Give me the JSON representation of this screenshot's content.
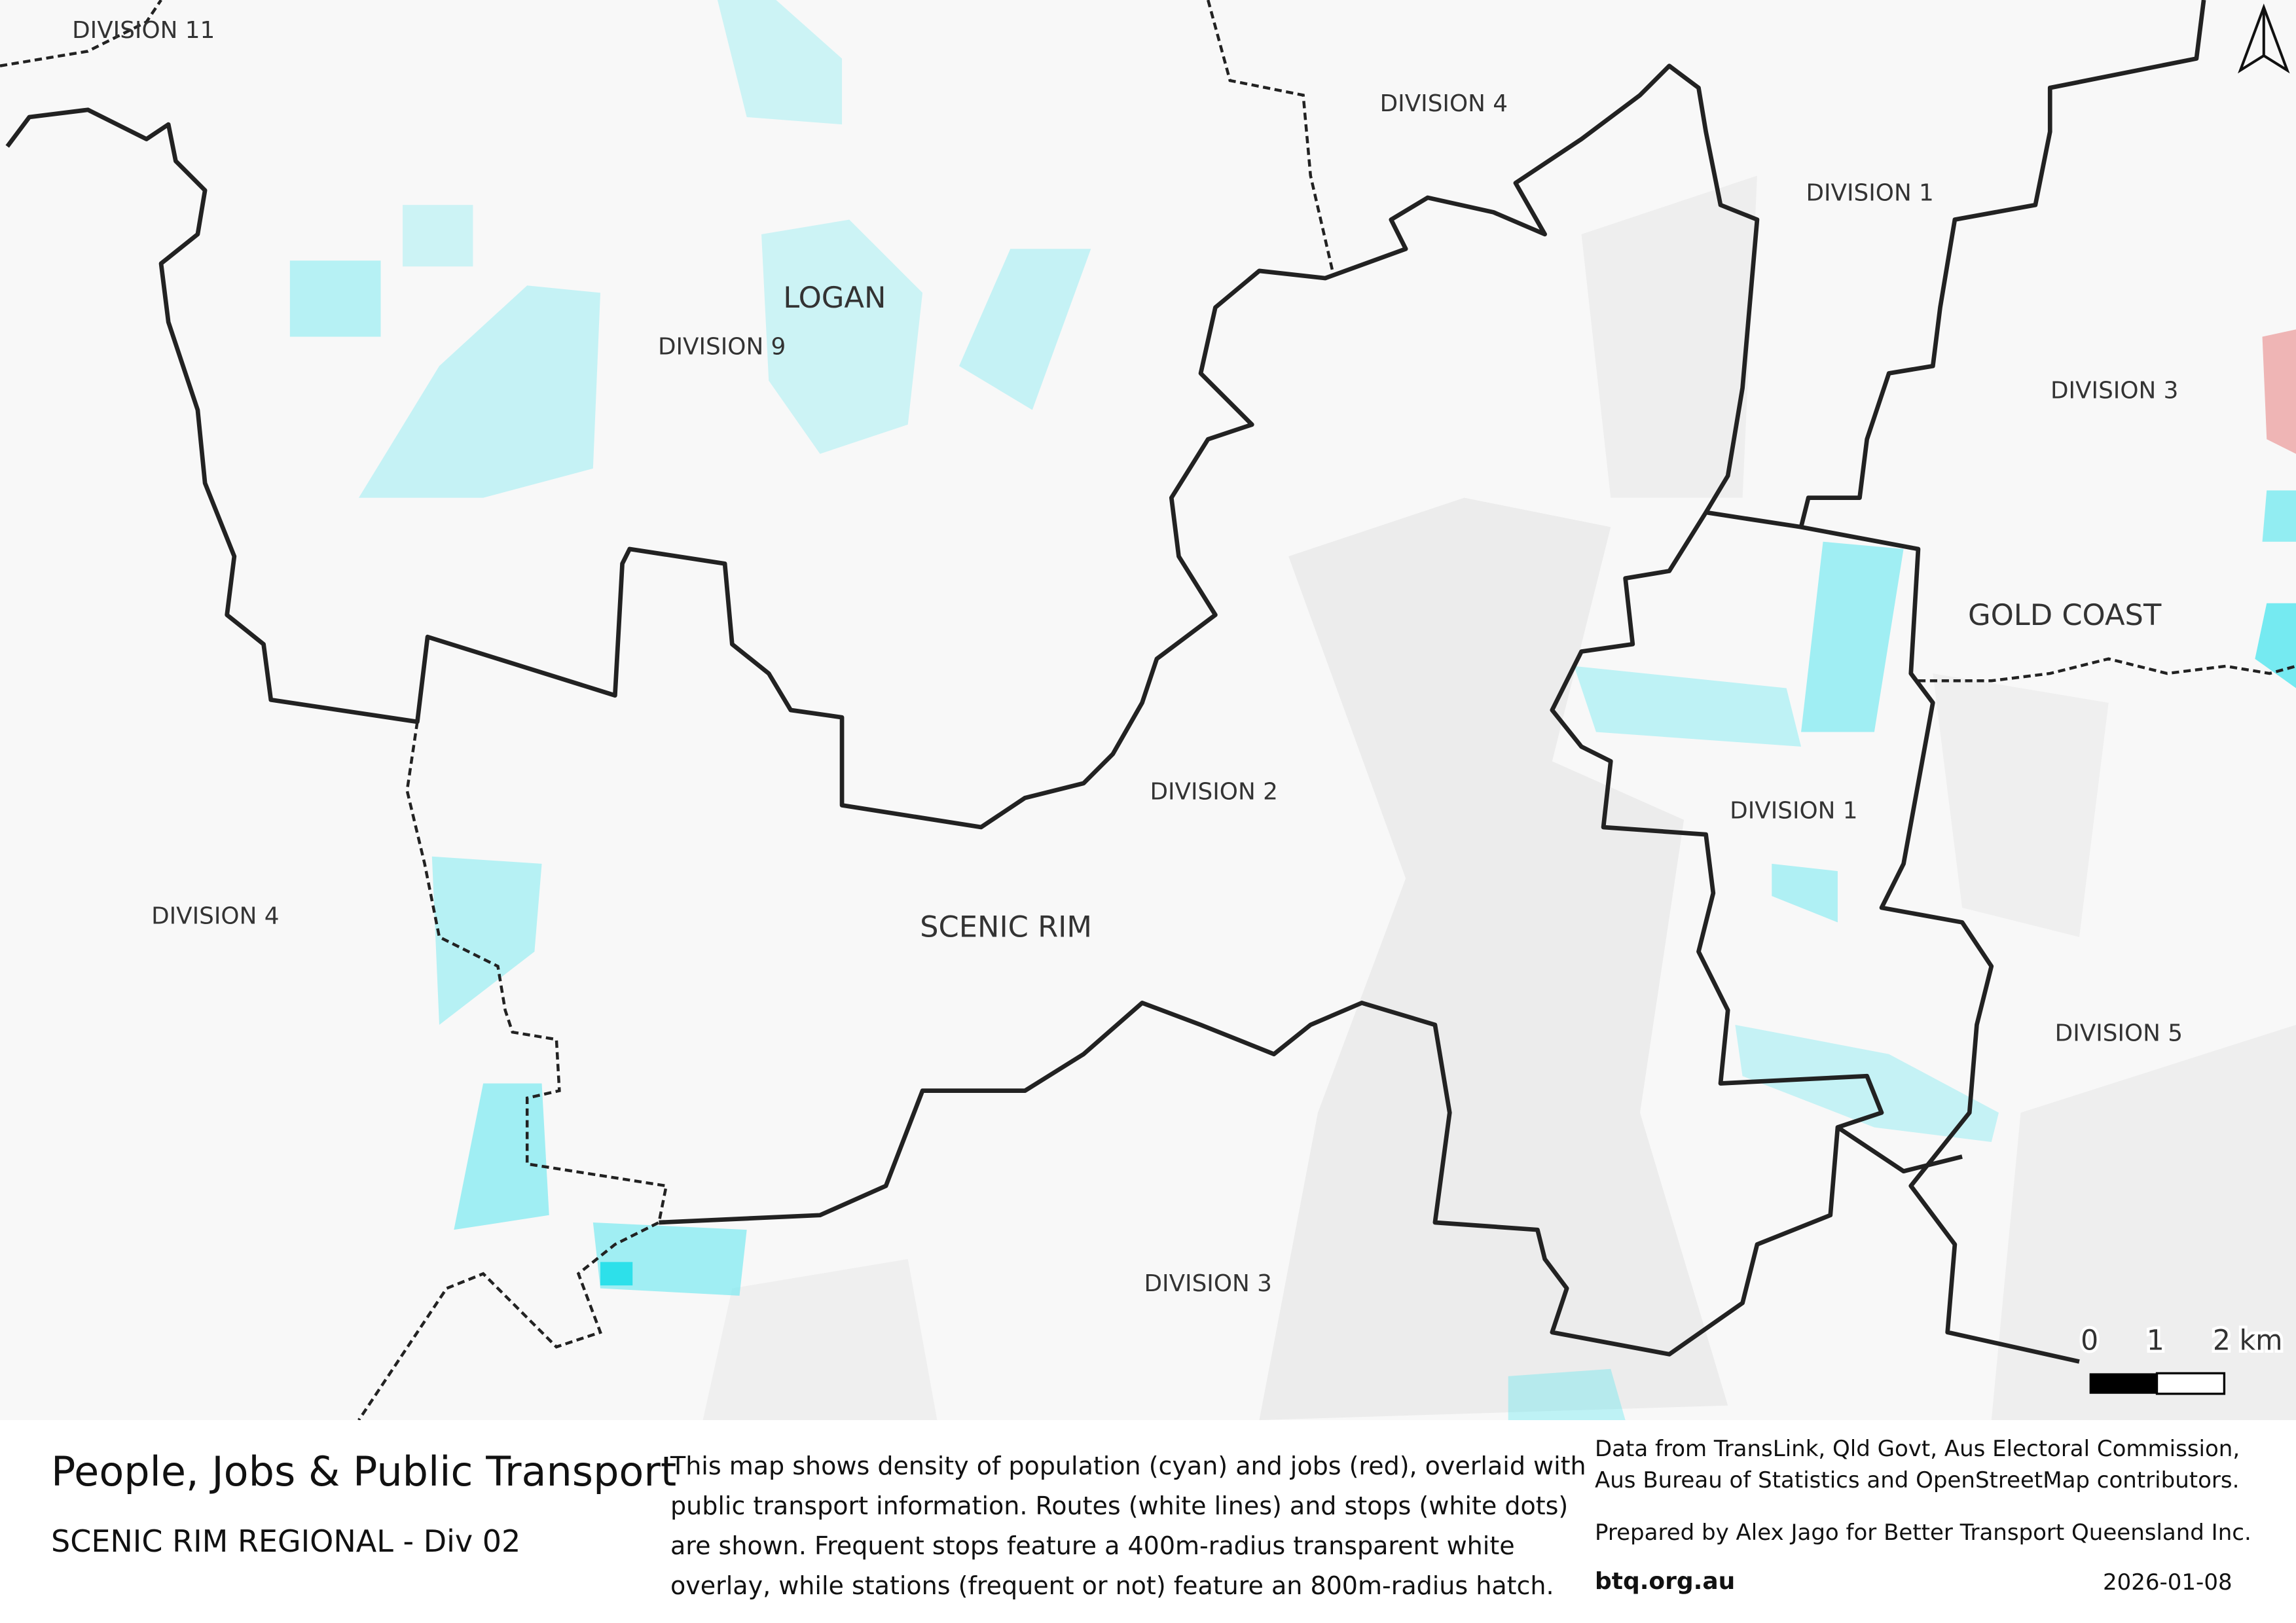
{
  "map": {
    "labels": {
      "logan": "LOGAN",
      "scenic_rim": "SCENIC RIM",
      "gold_coast": "GOLD COAST",
      "div11": "DIVISION 11",
      "div4_top": "DIVISION 4",
      "div9": "DIVISION 9",
      "div1_top": "DIVISION 1",
      "div3_right": "DIVISION 3",
      "div2": "DIVISION 2",
      "div4_left": "DIVISION 4",
      "div1_mid": "DIVISION 1",
      "div5": "DIVISION 5",
      "div3_bottom": "DIVISION 3"
    },
    "scale_bar": {
      "tick0": "0",
      "tick1": "1",
      "tick2": "2 km"
    },
    "north_arrow": "north-arrow-icon",
    "colors": {
      "population": "#66e8f0",
      "jobs": "#e05050",
      "boundary": "#222222"
    }
  },
  "footer": {
    "title": "People, Jobs & Public Transport",
    "subtitle": "SCENIC RIM REGIONAL - Div 02",
    "description": [
      "This map shows density of population (cyan) and jobs (red), overlaid with",
      "public transport information. Routes (white lines) and stops (white dots)",
      "are shown. Frequent stops feature a 400m-radius transparent white",
      "overlay, while stations (frequent or not) feature an 800m-radius hatch."
    ],
    "credits": [
      "Data from TransLink,  Qld Govt,  Aus Electoral Commission,",
      "Aus Bureau of Statistics and OpenStreetMap contributors."
    ],
    "prepared": "Prepared by Alex Jago for Better Transport Queensland Inc.",
    "site": "btq.org.au",
    "date": "2026-01-08"
  }
}
